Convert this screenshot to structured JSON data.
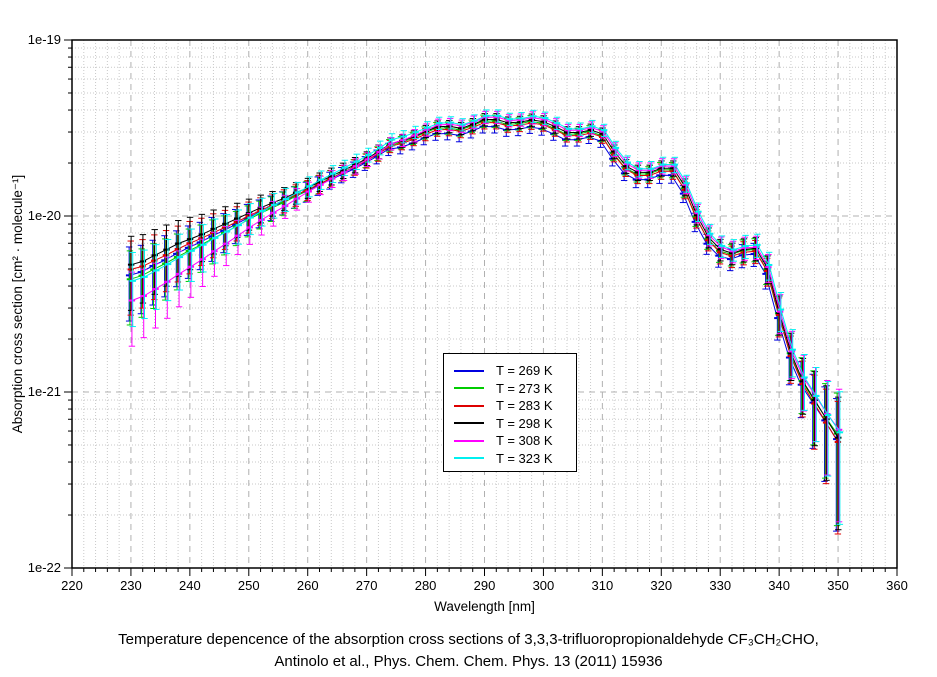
{
  "figure": {
    "x_axis": {
      "label": "Wavelength [nm]",
      "tick_labels": [
        "220",
        "230",
        "240",
        "250",
        "260",
        "270",
        "280",
        "290",
        "300",
        "310",
        "320",
        "330",
        "340",
        "350",
        "360"
      ],
      "range": [
        220,
        360
      ],
      "minor_step_nm": 2
    },
    "y_axis": {
      "label": "Absorption cross section [cm² · molecule⁻¹]",
      "tick_labels": [
        "1e-19",
        "1e-20",
        "1e-21",
        "1e-22"
      ],
      "scale": "log",
      "range": [
        "1e-22",
        "1e-19"
      ]
    },
    "legend": {
      "items": [
        {
          "label": "T = 269 K",
          "color": "#0000e0"
        },
        {
          "label": "T = 273 K",
          "color": "#00cc00"
        },
        {
          "label": "T = 283 K",
          "color": "#dd0000"
        },
        {
          "label": "T = 298 K",
          "color": "#000000"
        },
        {
          "label": "T = 308 K",
          "color": "#ff00ff"
        },
        {
          "label": "T = 323 K",
          "color": "#00f0f0"
        }
      ]
    },
    "caption": {
      "line1": "Temperature depencence of the absorption cross sections of 3,3,3-trifluoropropionaldehyde CF₃CH₂CHO,",
      "line2": "Antinolo et al., Phys. Chem. Chem. Phys. 13 (2011) 15936"
    },
    "colors": {
      "grid_minor": "#c9c9c9",
      "grid_major": "#b0b0b0",
      "axis": "#000000",
      "background": "#ffffff"
    }
  },
  "chart_data": {
    "type": "line",
    "title": "",
    "xlabel": "Wavelength [nm]",
    "ylabel": "Absorption cross section [cm² · molecule⁻¹]",
    "x_unit": "nm",
    "values_unit": "1e-20 cm^2 molecule^-1",
    "y_scale": "log",
    "xlim": [
      220,
      360
    ],
    "ylim": [
      "1e-22",
      "1e-19"
    ],
    "grid": true,
    "legend_position": "inside-center",
    "error_bars": true,
    "x_nm": [
      230,
      232,
      234,
      236,
      238,
      240,
      242,
      244,
      246,
      248,
      250,
      252,
      254,
      256,
      258,
      260,
      262,
      264,
      266,
      268,
      270,
      272,
      274,
      276,
      278,
      280,
      282,
      284,
      286,
      288,
      290,
      292,
      294,
      296,
      298,
      300,
      302,
      304,
      306,
      308,
      310,
      312,
      314,
      316,
      318,
      320,
      322,
      324,
      326,
      328,
      330,
      332,
      334,
      336,
      338,
      340,
      342,
      344,
      346,
      348,
      350
    ],
    "rel_error": [
      0.45,
      0.42,
      0.4,
      0.38,
      0.35,
      0.33,
      0.3,
      0.28,
      0.25,
      0.22,
      0.2,
      0.18,
      0.16,
      0.15,
      0.14,
      0.13,
      0.12,
      0.11,
      0.1,
      0.1,
      0.09,
      0.09,
      0.08,
      0.08,
      0.08,
      0.08,
      0.08,
      0.08,
      0.08,
      0.08,
      0.08,
      0.08,
      0.08,
      0.08,
      0.08,
      0.08,
      0.08,
      0.08,
      0.08,
      0.08,
      0.08,
      0.09,
      0.09,
      0.1,
      0.1,
      0.1,
      0.1,
      0.11,
      0.12,
      0.13,
      0.14,
      0.14,
      0.15,
      0.15,
      0.18,
      0.25,
      0.3,
      0.35,
      0.45,
      0.55,
      0.7
    ],
    "series": [
      {
        "name": "T = 269 K",
        "color": "#0000e0",
        "values": [
          0.46,
          0.48,
          0.52,
          0.56,
          0.61,
          0.66,
          0.708,
          0.767,
          0.825,
          0.893,
          0.97,
          1.045,
          1.12,
          1.193,
          1.286,
          1.377,
          1.488,
          1.597,
          1.715,
          1.841,
          1.995,
          2.174,
          2.397,
          2.451,
          2.582,
          2.76,
          2.926,
          2.944,
          2.87,
          3.018,
          3.22,
          3.22,
          3.082,
          3.11,
          3.202,
          3.128,
          2.926,
          2.714,
          2.714,
          2.806,
          2.668,
          2.116,
          1.748,
          1.61,
          1.61,
          1.702,
          1.706,
          1.34,
          0.926,
          0.696,
          0.595,
          0.569,
          0.598,
          0.608,
          0.469,
          0.263,
          0.157,
          0.11,
          0.087,
          0.069,
          0.054
        ]
      },
      {
        "name": "T = 273 K",
        "color": "#00cc00",
        "values": [
          0.437,
          0.458,
          0.497,
          0.537,
          0.585,
          0.634,
          0.683,
          0.742,
          0.801,
          0.87,
          0.951,
          1.029,
          1.108,
          1.188,
          1.287,
          1.392,
          1.512,
          1.632,
          1.761,
          1.901,
          2.069,
          2.268,
          2.516,
          2.616,
          2.767,
          2.97,
          3.148,
          3.168,
          3.089,
          3.247,
          3.465,
          3.465,
          3.317,
          3.346,
          3.445,
          3.366,
          3.148,
          2.921,
          2.921,
          3.02,
          2.871,
          2.277,
          1.881,
          1.733,
          1.733,
          1.832,
          1.832,
          1.436,
          0.991,
          0.743,
          0.634,
          0.605,
          0.636,
          0.646,
          0.498,
          0.28,
          0.166,
          0.116,
          0.091,
          0.072,
          0.058
        ]
      },
      {
        "name": "T = 283 K",
        "color": "#dd0000",
        "values": [
          0.497,
          0.517,
          0.558,
          0.599,
          0.649,
          0.7,
          0.747,
          0.804,
          0.861,
          0.925,
          1.0,
          1.075,
          1.15,
          1.225,
          1.319,
          1.406,
          1.521,
          1.636,
          1.76,
          1.894,
          2.058,
          2.249,
          2.489,
          2.583,
          2.727,
          2.91,
          3.085,
          3.104,
          3.026,
          3.182,
          3.395,
          3.395,
          3.25,
          3.279,
          3.376,
          3.298,
          3.085,
          2.862,
          2.862,
          2.959,
          2.813,
          2.231,
          1.843,
          1.698,
          1.698,
          1.795,
          1.795,
          1.407,
          0.97,
          0.728,
          0.621,
          0.592,
          0.621,
          0.631,
          0.487,
          0.274,
          0.16,
          0.111,
          0.086,
          0.067,
          0.052
        ]
      },
      {
        "name": "T = 298 K",
        "color": "#000000",
        "values": [
          0.529,
          0.552,
          0.598,
          0.644,
          0.698,
          0.739,
          0.786,
          0.845,
          0.903,
          0.968,
          1.039,
          1.114,
          1.187,
          1.262,
          1.357,
          1.448,
          1.567,
          1.686,
          1.815,
          1.954,
          2.123,
          2.323,
          2.573,
          2.672,
          2.821,
          3.03,
          3.212,
          3.232,
          3.151,
          3.313,
          3.535,
          3.535,
          3.384,
          3.414,
          3.515,
          3.434,
          3.212,
          2.98,
          2.98,
          3.081,
          2.929,
          2.323,
          1.919,
          1.768,
          1.768,
          1.869,
          1.868,
          1.464,
          1.01,
          0.757,
          0.646,
          0.615,
          0.645,
          0.655,
          0.503,
          0.281,
          0.166,
          0.115,
          0.09,
          0.07,
          0.055
        ]
      },
      {
        "name": "T = 308 K",
        "color": "#ff00ff",
        "values": [
          0.331,
          0.351,
          0.385,
          0.423,
          0.469,
          0.515,
          0.568,
          0.631,
          0.697,
          0.774,
          0.862,
          0.951,
          1.043,
          1.139,
          1.256,
          1.377,
          1.503,
          1.631,
          1.769,
          1.92,
          2.1,
          2.314,
          2.581,
          2.698,
          2.868,
          3.09,
          3.287,
          3.318,
          3.245,
          3.422,
          3.64,
          3.64,
          3.484,
          3.515,
          3.619,
          3.536,
          3.307,
          3.068,
          3.068,
          3.172,
          3.016,
          2.392,
          1.976,
          1.82,
          1.82,
          1.924,
          1.922,
          1.505,
          1.037,
          0.777,
          0.666,
          0.63,
          0.659,
          0.667,
          0.512,
          0.286,
          0.17,
          0.12,
          0.095,
          0.075,
          0.061
        ]
      },
      {
        "name": "T = 323 K",
        "color": "#00f0f0",
        "values": [
          0.428,
          0.451,
          0.491,
          0.533,
          0.584,
          0.634,
          0.687,
          0.751,
          0.816,
          0.887,
          0.98,
          1.069,
          1.158,
          1.249,
          1.361,
          1.477,
          1.609,
          1.742,
          1.885,
          2.041,
          2.226,
          2.444,
          2.716,
          2.828,
          2.993,
          3.18,
          3.371,
          3.392,
          3.307,
          3.477,
          3.71,
          3.71,
          3.551,
          3.583,
          3.689,
          3.604,
          3.371,
          3.127,
          3.127,
          3.233,
          3.074,
          2.438,
          2.014,
          1.855,
          1.855,
          1.961,
          1.959,
          1.535,
          1.058,
          0.793,
          0.676,
          0.644,
          0.675,
          0.685,
          0.527,
          0.294,
          0.174,
          0.121,
          0.095,
          0.074,
          0.059
        ]
      }
    ]
  }
}
